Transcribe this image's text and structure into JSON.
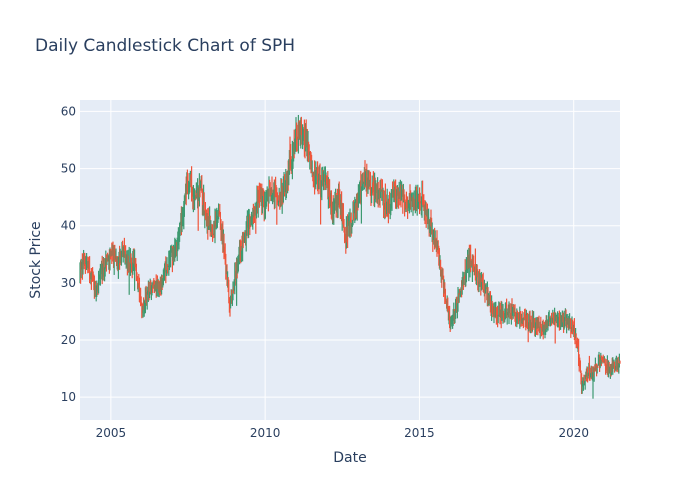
{
  "chart_data": {
    "type": "candlestick",
    "title": "Daily Candlestick Chart of SPH",
    "xlabel": "Date",
    "ylabel": "Stock Price",
    "x_range": [
      2004.0,
      2021.5
    ],
    "ylim": [
      6,
      62
    ],
    "x_ticks": [
      2005,
      2010,
      2015,
      2020
    ],
    "x_tick_labels": [
      "2005",
      "2010",
      "2015",
      "2020"
    ],
    "y_ticks": [
      10,
      20,
      30,
      40,
      50,
      60
    ],
    "y_tick_labels": [
      "10",
      "20",
      "30",
      "40",
      "50",
      "60"
    ],
    "grid": true,
    "increasing_color": "#3d9970",
    "decreasing_color": "#ef553b",
    "close_path": [
      [
        2004.0,
        32
      ],
      [
        2004.2,
        34
      ],
      [
        2004.4,
        31
      ],
      [
        2004.5,
        28.5
      ],
      [
        2004.7,
        32
      ],
      [
        2004.9,
        34
      ],
      [
        2005.2,
        34.5
      ],
      [
        2005.4,
        35.5
      ],
      [
        2005.6,
        33
      ],
      [
        2005.75,
        34
      ],
      [
        2005.85,
        30
      ],
      [
        2006.0,
        25
      ],
      [
        2006.2,
        28
      ],
      [
        2006.4,
        29.5
      ],
      [
        2006.6,
        29
      ],
      [
        2006.8,
        33
      ],
      [
        2007.0,
        35
      ],
      [
        2007.2,
        38
      ],
      [
        2007.3,
        42
      ],
      [
        2007.4,
        46
      ],
      [
        2007.55,
        48.5
      ],
      [
        2007.7,
        44
      ],
      [
        2007.9,
        47
      ],
      [
        2008.1,
        41
      ],
      [
        2008.3,
        39
      ],
      [
        2008.5,
        41.5
      ],
      [
        2008.6,
        39
      ],
      [
        2008.7,
        34
      ],
      [
        2008.85,
        26
      ],
      [
        2009.0,
        30
      ],
      [
        2009.2,
        36
      ],
      [
        2009.4,
        39
      ],
      [
        2009.6,
        42
      ],
      [
        2009.8,
        45
      ],
      [
        2010.0,
        44
      ],
      [
        2010.2,
        47
      ],
      [
        2010.4,
        45
      ],
      [
        2010.6,
        46
      ],
      [
        2010.8,
        51
      ],
      [
        2011.0,
        55
      ],
      [
        2011.2,
        57
      ],
      [
        2011.4,
        53
      ],
      [
        2011.6,
        48
      ],
      [
        2011.8,
        47
      ],
      [
        2012.0,
        47
      ],
      [
        2012.2,
        42
      ],
      [
        2012.4,
        45
      ],
      [
        2012.6,
        38
      ],
      [
        2012.8,
        41
      ],
      [
        2013.0,
        44
      ],
      [
        2013.2,
        48
      ],
      [
        2013.4,
        47
      ],
      [
        2013.6,
        46
      ],
      [
        2013.8,
        45
      ],
      [
        2014.0,
        43
      ],
      [
        2014.2,
        46
      ],
      [
        2014.4,
        45
      ],
      [
        2014.6,
        44
      ],
      [
        2014.8,
        44
      ],
      [
        2015.0,
        45
      ],
      [
        2015.2,
        43
      ],
      [
        2015.4,
        39
      ],
      [
        2015.6,
        35
      ],
      [
        2015.8,
        29
      ],
      [
        2016.0,
        23
      ],
      [
        2016.2,
        26
      ],
      [
        2016.4,
        30
      ],
      [
        2016.6,
        34
      ],
      [
        2016.8,
        32
      ],
      [
        2017.0,
        30
      ],
      [
        2017.2,
        28
      ],
      [
        2017.4,
        25
      ],
      [
        2017.6,
        24.5
      ],
      [
        2017.8,
        25
      ],
      [
        2018.0,
        25
      ],
      [
        2018.2,
        24
      ],
      [
        2018.4,
        23.5
      ],
      [
        2018.6,
        23
      ],
      [
        2018.8,
        23
      ],
      [
        2019.0,
        22
      ],
      [
        2019.2,
        23
      ],
      [
        2019.4,
        23.5
      ],
      [
        2019.6,
        23.5
      ],
      [
        2019.8,
        23
      ],
      [
        2020.0,
        22
      ],
      [
        2020.15,
        18
      ],
      [
        2020.25,
        12
      ],
      [
        2020.4,
        14
      ],
      [
        2020.6,
        14
      ],
      [
        2020.8,
        16
      ],
      [
        2021.0,
        15.5
      ],
      [
        2021.2,
        15
      ],
      [
        2021.4,
        15.5
      ],
      [
        2021.5,
        15.5
      ]
    ]
  }
}
